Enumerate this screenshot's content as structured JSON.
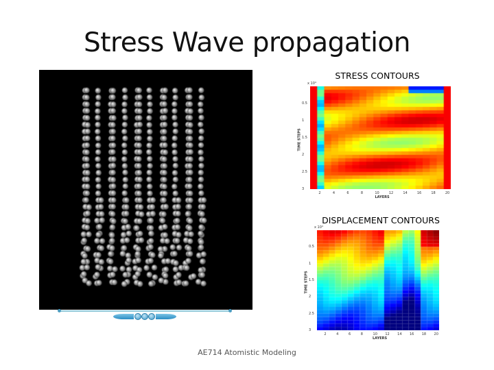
{
  "slide": {
    "title": "Stress Wave propagation",
    "footer": "AE714 Atomistic Modeling"
  },
  "movie": {
    "background": "#000000",
    "atom_color": "#9a9a9a",
    "controls": [
      "rewind",
      "pause",
      "stop",
      "play"
    ]
  },
  "stress_plot": {
    "caption": "STRESS CONTOURS",
    "multiplier": "x 10⁴",
    "ylabel": "TIME STEPS",
    "xlabel": "LAYERS",
    "yticks": [
      "0.5",
      "1",
      "1.5",
      "2",
      "2.5",
      "3"
    ],
    "xticks": [
      "2",
      "4",
      "6",
      "8",
      "10",
      "12",
      "14",
      "16",
      "18",
      "20"
    ]
  },
  "displacement_plot": {
    "caption": "DISPLACEMENT CONTOURS",
    "multiplier": "x 10⁴",
    "ylabel": "TIME STEPS",
    "xlabel": "LAYERS",
    "yticks": [
      "0.5",
      "1",
      "1.5",
      "2",
      "2.5",
      "3"
    ],
    "xticks": [
      "2",
      "4",
      "6",
      "8",
      "10",
      "12",
      "14",
      "16",
      "18",
      "20"
    ]
  },
  "chart_data": [
    {
      "type": "heatmap",
      "title": "STRESS CONTOURS",
      "xlabel": "LAYERS",
      "ylabel": "TIME STEPS (x10^4)",
      "xlim": [
        1,
        20
      ],
      "ylim": [
        0,
        3
      ],
      "colormap": "jet",
      "description": "Stress contours over 20 layers and time 0-3x10^4 steps; column 1 and 20 strongly red, column 2 cyan; diagonal red/orange bands show wave reflections crossing layers; blue band near top right (layers 14-19)."
    },
    {
      "type": "heatmap",
      "title": "DISPLACEMENT CONTOURS",
      "xlabel": "LAYERS",
      "ylabel": "TIME STEPS (x10^4)",
      "xlim": [
        1,
        20
      ],
      "ylim": [
        0,
        3
      ],
      "colormap": "jet",
      "description": "Displacement contours: red/orange at early times (top) for layers 1-10 and 18-20, transitioning to cyan then dark blue at later times; deepest blue near layers 14-16 at late times."
    }
  ]
}
